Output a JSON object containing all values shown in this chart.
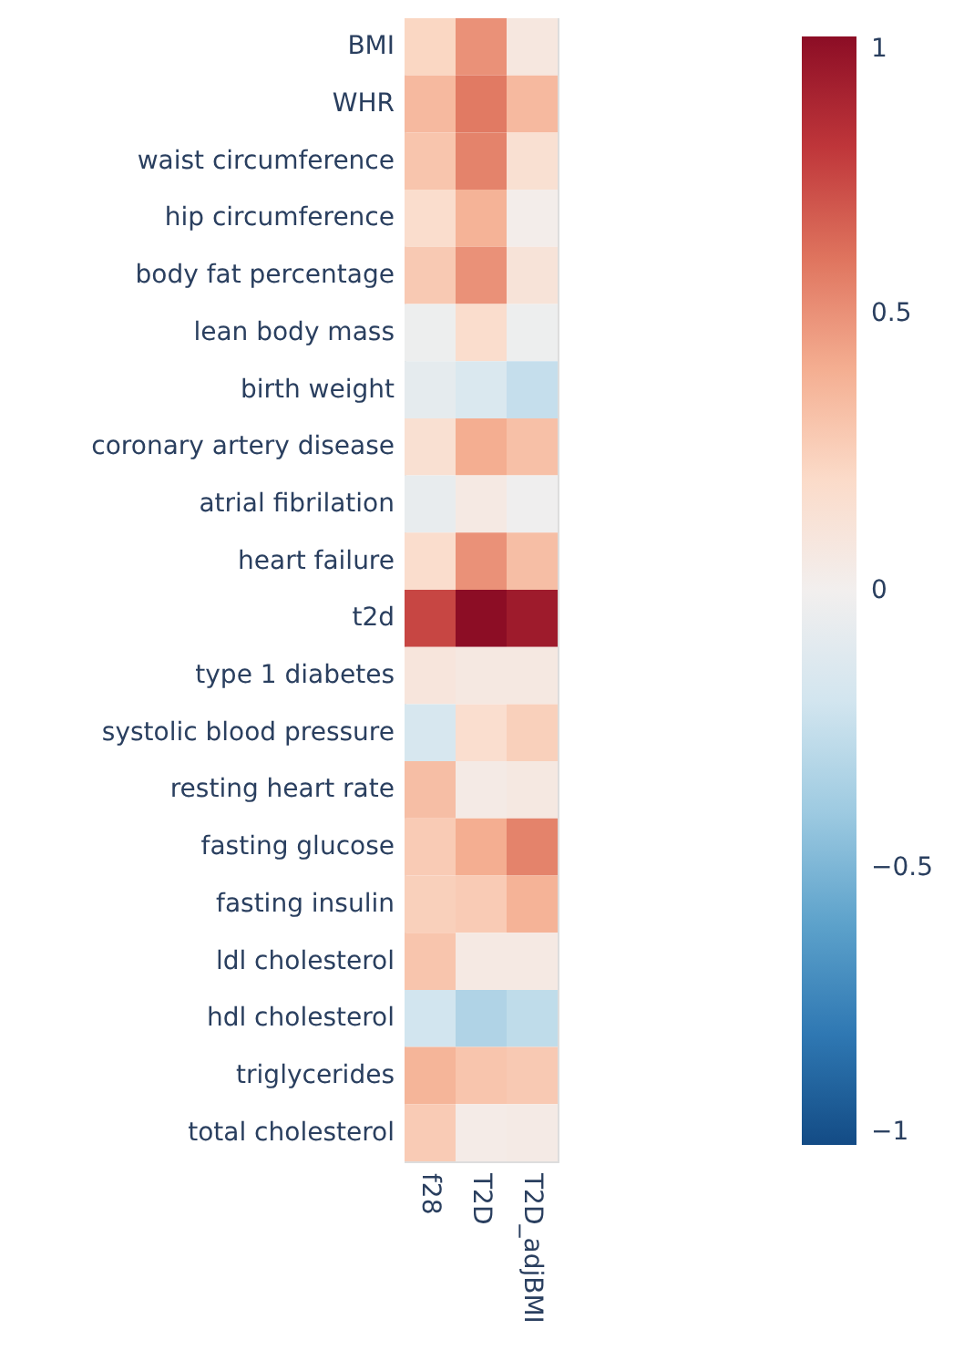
{
  "chart_data": {
    "type": "heatmap",
    "categories": [
      "f28",
      "T2D",
      "T2D_adjBMI"
    ],
    "y_categories": [
      "BMI",
      "WHR",
      "waist circumference",
      "hip circumference",
      "body fat percentage",
      "lean body mass",
      "birth weight",
      "coronary artery disease",
      "atrial fibrilation",
      "heart failure",
      "t2d",
      "type 1 diabetes",
      "systolic blood pressure",
      "resting heart rate",
      "fasting glucose",
      "fasting insulin",
      "ldl cholesterol",
      "hdl cholesterol",
      "triglycerides",
      "total cholesterol"
    ],
    "cells": [
      [
        0.22,
        0.5,
        0.08
      ],
      [
        0.35,
        0.58,
        0.35
      ],
      [
        0.3,
        0.55,
        0.15
      ],
      [
        0.18,
        0.38,
        0.02
      ],
      [
        0.28,
        0.5,
        0.12
      ],
      [
        -0.03,
        0.18,
        -0.03
      ],
      [
        -0.08,
        -0.15,
        -0.25
      ],
      [
        0.15,
        0.4,
        0.32
      ],
      [
        -0.06,
        0.06,
        -0.02
      ],
      [
        0.18,
        0.5,
        0.33
      ],
      [
        0.75,
        1.0,
        0.93
      ],
      [
        0.1,
        0.07,
        0.07
      ],
      [
        -0.17,
        0.17,
        0.25
      ],
      [
        0.33,
        0.05,
        0.07
      ],
      [
        0.27,
        0.4,
        0.55
      ],
      [
        0.25,
        0.27,
        0.38
      ],
      [
        0.3,
        0.06,
        0.06
      ],
      [
        -0.2,
        -0.33,
        -0.27
      ],
      [
        0.37,
        0.3,
        0.28
      ],
      [
        0.27,
        0.04,
        0.05
      ]
    ],
    "clim": [
      -1,
      1
    ],
    "cticks": [
      {
        "value": -1,
        "label": "−1"
      },
      {
        "value": -0.5,
        "label": "−0.5"
      },
      0,
      0.5,
      1
    ]
  }
}
